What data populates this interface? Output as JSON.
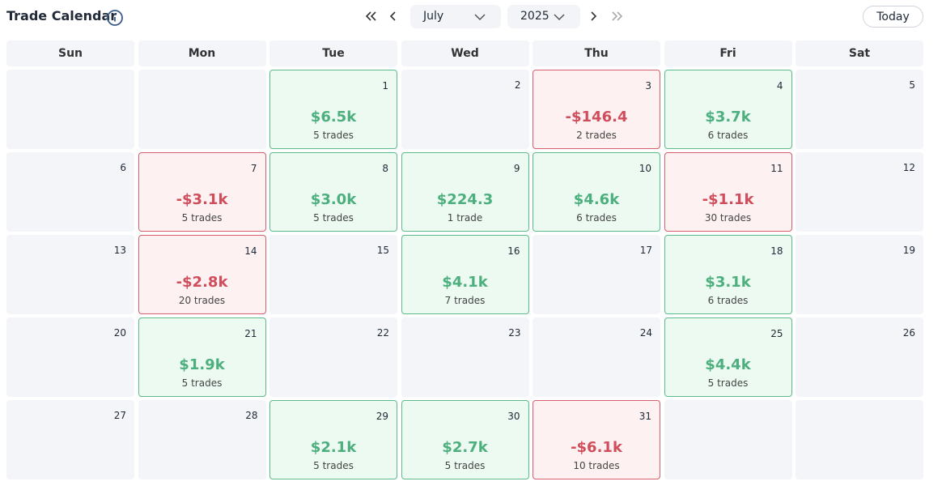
{
  "header": {
    "title": "Trade Calendar",
    "month": "July",
    "year": "2025",
    "today": "Today"
  },
  "weekdays": [
    "Sun",
    "Mon",
    "Tue",
    "Wed",
    "Thu",
    "Fri",
    "Sat"
  ],
  "weeks": [
    [
      null,
      null,
      {
        "day": 1,
        "pnl": "$6.5k",
        "trades": "5 trades"
      },
      {
        "day": 2
      },
      {
        "day": 3,
        "pnl": "-$146.4",
        "trades": "2 trades"
      },
      {
        "day": 4,
        "pnl": "$3.7k",
        "trades": "6 trades"
      },
      {
        "day": 5
      }
    ],
    [
      {
        "day": 6
      },
      {
        "day": 7,
        "pnl": "-$3.1k",
        "trades": "5 trades"
      },
      {
        "day": 8,
        "pnl": "$3.0k",
        "trades": "5 trades"
      },
      {
        "day": 9,
        "pnl": "$224.3",
        "trades": "1 trade"
      },
      {
        "day": 10,
        "pnl": "$4.6k",
        "trades": "6 trades"
      },
      {
        "day": 11,
        "pnl": "-$1.1k",
        "trades": "30 trades"
      },
      {
        "day": 12
      }
    ],
    [
      {
        "day": 13
      },
      {
        "day": 14,
        "pnl": "-$2.8k",
        "trades": "20 trades"
      },
      {
        "day": 15
      },
      {
        "day": 16,
        "pnl": "$4.1k",
        "trades": "7 trades"
      },
      {
        "day": 17
      },
      {
        "day": 18,
        "pnl": "$3.1k",
        "trades": "6 trades"
      },
      {
        "day": 19
      }
    ],
    [
      {
        "day": 20
      },
      {
        "day": 21,
        "pnl": "$1.9k",
        "trades": "5 trades"
      },
      {
        "day": 22
      },
      {
        "day": 23
      },
      {
        "day": 24
      },
      {
        "day": 25,
        "pnl": "$4.4k",
        "trades": "5 trades"
      },
      {
        "day": 26
      }
    ],
    [
      {
        "day": 27
      },
      {
        "day": 28
      },
      {
        "day": 29,
        "pnl": "$2.1k",
        "trades": "5 trades"
      },
      {
        "day": 30,
        "pnl": "$2.7k",
        "trades": "5 trades"
      },
      {
        "day": 31,
        "pnl": "-$6.1k",
        "trades": "10 trades"
      },
      null,
      null
    ]
  ]
}
